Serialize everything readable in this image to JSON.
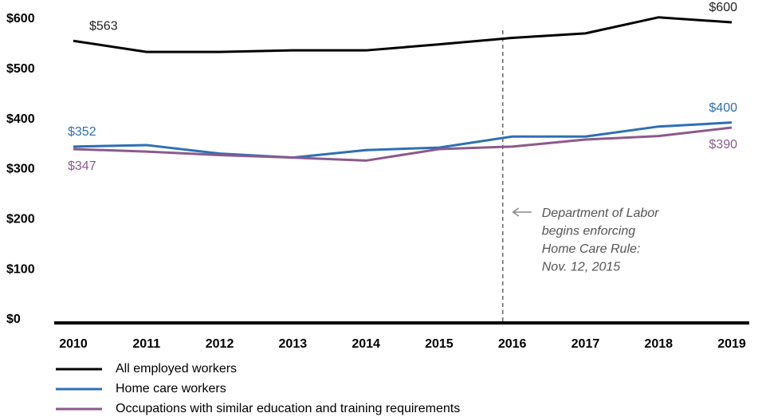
{
  "chart_data": {
    "type": "line",
    "x": [
      2010,
      2011,
      2012,
      2013,
      2014,
      2015,
      2016,
      2017,
      2018,
      2019
    ],
    "xlim": [
      2010,
      2019
    ],
    "xticks": [
      2010,
      2011,
      2012,
      2013,
      2014,
      2015,
      2016,
      2017,
      2018,
      2019
    ],
    "ylim": [
      0,
      600
    ],
    "yticks": [
      {
        "value": 0,
        "label": "$0"
      },
      {
        "value": 100,
        "label": "$100"
      },
      {
        "value": 200,
        "label": "$200"
      },
      {
        "value": 300,
        "label": "$300"
      },
      {
        "value": 400,
        "label": "$400"
      },
      {
        "value": 500,
        "label": "$500"
      },
      {
        "value": 600,
        "label": "$600"
      }
    ],
    "series": [
      {
        "name": "All employed workers",
        "color": "#000000",
        "values": [
          563,
          541,
          541,
          544,
          544,
          556,
          569,
          578,
          610,
          600
        ],
        "value_labels": [
          "$563",
          null,
          null,
          null,
          null,
          null,
          null,
          null,
          null,
          "$600"
        ]
      },
      {
        "name": "Home care workers",
        "color": "#2e6fb5",
        "values": [
          352,
          355,
          338,
          330,
          345,
          350,
          372,
          372,
          392,
          400
        ],
        "value_labels": [
          "$352",
          null,
          null,
          null,
          null,
          null,
          null,
          null,
          null,
          "$400"
        ]
      },
      {
        "name": "Occupations with similar education and training requirements",
        "color": "#8b5a8c",
        "values": [
          347,
          342,
          335,
          330,
          324,
          347,
          352,
          366,
          373,
          390
        ],
        "value_labels": [
          "$347",
          null,
          null,
          null,
          null,
          null,
          null,
          null,
          null,
          "$390"
        ]
      }
    ],
    "event": {
      "x": 2015.87,
      "lines": [
        "Department of Labor",
        "begins enforcing",
        "Home Care Rule:",
        "Nov. 12, 2015"
      ]
    }
  }
}
